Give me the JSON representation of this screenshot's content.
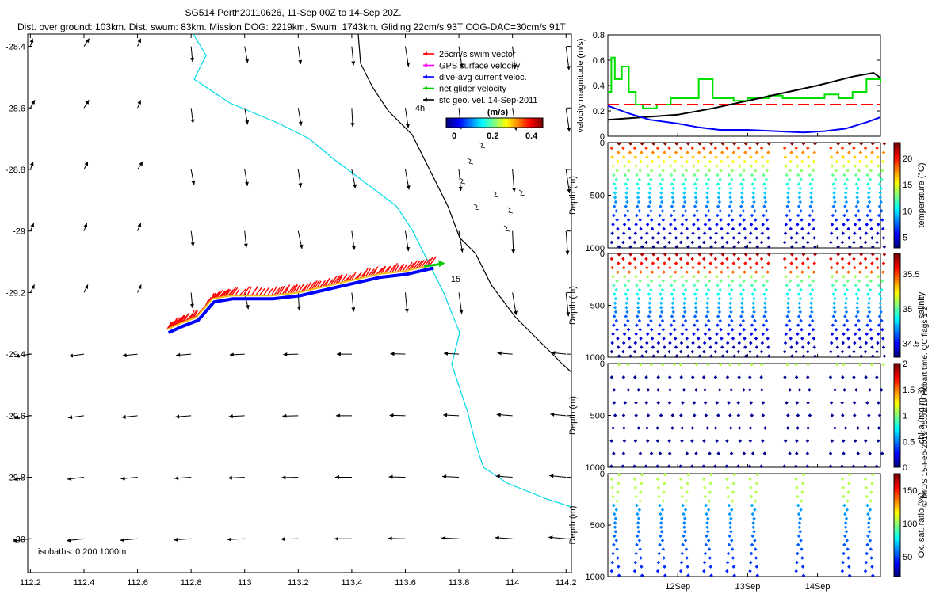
{
  "header": {
    "title_line1": "SG514 Perth20110626, 11-Sep 00Z to 14-Sep 20Z.",
    "title_line2": "Dist. over ground: 103km. Dist. swum: 83km. Mission DOG: 2219km. Swum: 1743km. Gliding 22cm/s 93T COG-DAC=30cm/s 91T"
  },
  "credit": "© IMOS 15-Feb-2019 05:01:19 Hobart time. QC flags 1  2",
  "colors": {
    "swim": "#ff0000",
    "gps": "#ff00ff",
    "dive_avg": "#0000ff",
    "net": "#00cc00",
    "isobath": "#00d8e8",
    "track": "#000000"
  },
  "chart_data": [
    {
      "type": "map",
      "x_ticks": [
        "112.2",
        "112.4",
        "112.6",
        "112.8",
        "113",
        "113.2",
        "113.4",
        "113.6",
        "113.8",
        "114",
        "114.2"
      ],
      "y_ticks": [
        "-28.4",
        "-28.6",
        "-28.8",
        "-29",
        "-29.2",
        "-29.4",
        "-29.6",
        "-29.8",
        "-30"
      ],
      "xlim": [
        112.19,
        114.22
      ],
      "ylim": [
        -30.11,
        -28.36
      ],
      "legend": [
        {
          "label": "25cm/s swim vector",
          "color": "#ff0000"
        },
        {
          "label": "GPS surface velocity",
          "color": "#ff00ff"
        },
        {
          "label": "dive-avg current veloc.",
          "color": "#0000ff"
        },
        {
          "label": "net glider velocity",
          "color": "#00cc00"
        },
        {
          "label": "sfc geo. vel. 14-Sep-2011",
          "color": "#000000"
        }
      ],
      "colorbar": {
        "unit": "(m/s)",
        "ticks": [
          "0",
          "0.2",
          "0.4"
        ],
        "range": [
          0,
          0.5
        ]
      },
      "annotations": {
        "hours": "4h",
        "day": "15",
        "isobaths": "isobaths: 0   200   1000m"
      },
      "glider_track": [
        {
          "lon": 112.71,
          "lat": -29.32
        },
        {
          "lon": 112.76,
          "lat": -29.3
        },
        {
          "lon": 112.82,
          "lat": -29.28
        },
        {
          "lon": 112.88,
          "lat": -29.22
        },
        {
          "lon": 112.95,
          "lat": -29.21
        },
        {
          "lon": 113.1,
          "lat": -29.21
        },
        {
          "lon": 113.2,
          "lat": -29.2
        },
        {
          "lon": 113.3,
          "lat": -29.18
        },
        {
          "lon": 113.4,
          "lat": -29.16
        },
        {
          "lon": 113.5,
          "lat": -29.14
        },
        {
          "lon": 113.6,
          "lat": -29.13
        },
        {
          "lon": 113.7,
          "lat": -29.11
        }
      ]
    },
    {
      "type": "line",
      "ylabel": "velocity magnitude (m/s)",
      "ylim": [
        0,
        0.8
      ],
      "y_ticks": [
        "0",
        "0.2",
        "0.4",
        "0.6",
        "0.8"
      ],
      "xlim": [
        11.0,
        14.9
      ],
      "series": [
        {
          "color": "#00e000",
          "x": [
            11.0,
            11.05,
            11.1,
            11.2,
            11.3,
            11.4,
            11.5,
            11.7,
            11.9,
            12.1,
            12.3,
            12.5,
            12.6,
            12.8,
            13.0,
            13.3,
            13.5,
            13.7,
            13.9,
            14.1,
            14.3,
            14.5,
            14.7,
            14.9
          ],
          "y": [
            0.35,
            0.62,
            0.45,
            0.55,
            0.35,
            0.25,
            0.22,
            0.25,
            0.3,
            0.3,
            0.45,
            0.3,
            0.3,
            0.28,
            0.3,
            0.32,
            0.3,
            0.3,
            0.3,
            0.33,
            0.3,
            0.35,
            0.45,
            0.42
          ]
        },
        {
          "color": "#ff0000",
          "dashed": true,
          "x": [
            11.0,
            14.9
          ],
          "y": [
            0.25,
            0.25
          ]
        },
        {
          "color": "#000000",
          "x": [
            11.0,
            11.5,
            12.0,
            12.5,
            13.0,
            13.5,
            14.0,
            14.5,
            14.8,
            14.9
          ],
          "y": [
            0.13,
            0.15,
            0.17,
            0.22,
            0.28,
            0.34,
            0.4,
            0.47,
            0.5,
            0.46
          ]
        },
        {
          "color": "#0000ff",
          "x": [
            11.0,
            11.3,
            11.6,
            12.0,
            12.3,
            12.6,
            13.0,
            13.4,
            13.8,
            14.1,
            14.4,
            14.7,
            14.9
          ],
          "y": [
            0.24,
            0.18,
            0.13,
            0.1,
            0.07,
            0.05,
            0.05,
            0.04,
            0.03,
            0.04,
            0.06,
            0.11,
            0.15
          ]
        }
      ]
    },
    {
      "type": "scatter",
      "ylabel": "Depth (m)",
      "y_ticks": [
        "0",
        "500",
        "1000"
      ],
      "ylim": [
        1000,
        0
      ],
      "colorbar_label": "temperature (°C)",
      "colorbar_ticks": [
        "5",
        "10",
        "15",
        "20"
      ],
      "range": [
        3,
        23
      ]
    },
    {
      "type": "scatter",
      "ylabel": "Depth (m)",
      "y_ticks": [
        "0",
        "500",
        "1000"
      ],
      "ylim": [
        1000,
        0
      ],
      "colorbar_label": "salinity",
      "colorbar_ticks": [
        "34.5",
        "35",
        "35.5"
      ],
      "range": [
        34.3,
        35.8
      ]
    },
    {
      "type": "scatter",
      "ylabel": "Depth (m)",
      "y_ticks": [
        "0",
        "500",
        "1000"
      ],
      "ylim": [
        1000,
        0
      ],
      "colorbar_label": "chl-a (mg m-3)",
      "colorbar_ticks": [
        "0",
        "0.5",
        "1",
        "1.5",
        "2"
      ],
      "range": [
        0,
        2
      ]
    },
    {
      "type": "scatter",
      "ylabel": "Depth (m)",
      "y_ticks": [
        "0",
        "500",
        "1000"
      ],
      "ylim": [
        1000,
        0
      ],
      "colorbar_label": "Ox. sat. ratio (%)",
      "colorbar_ticks": [
        "50",
        "100",
        "150"
      ],
      "range": [
        20,
        175
      ]
    },
    {
      "type": "time_axis",
      "x_ticks": [
        "12Sep",
        "13Sep",
        "14Sep"
      ],
      "x_values": [
        12,
        13,
        14
      ]
    }
  ]
}
